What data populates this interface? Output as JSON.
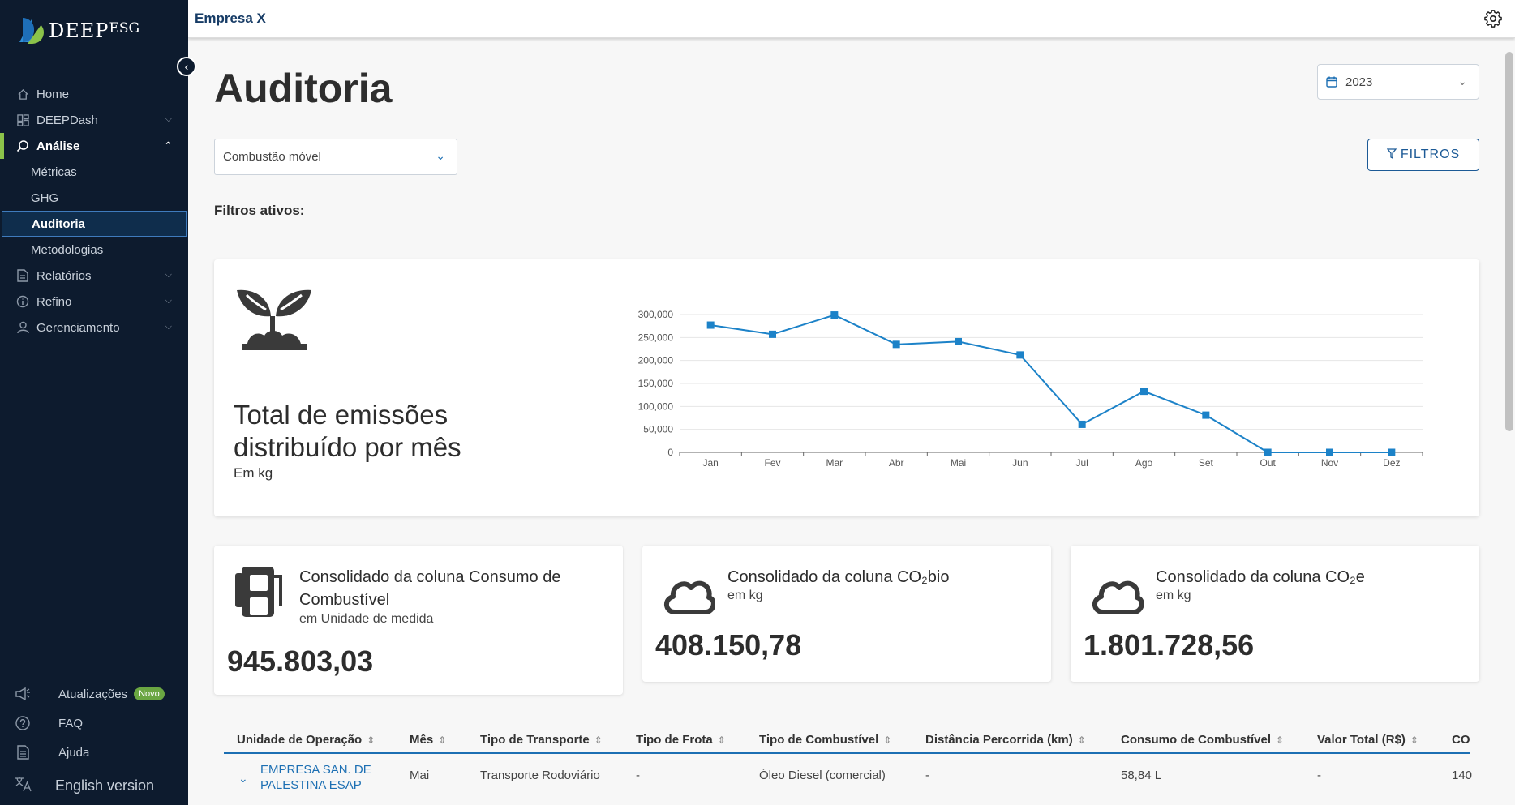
{
  "brand": {
    "name": "DEEP",
    "suffix": "ESG"
  },
  "sidebar": {
    "items": [
      {
        "label": "Home",
        "icon": "home-icon"
      },
      {
        "label": "DEEPDash",
        "icon": "dashboard-icon"
      },
      {
        "label": "Análise",
        "icon": "analysis-icon"
      },
      {
        "label": "Relatórios",
        "icon": "report-icon"
      },
      {
        "label": "Refino",
        "icon": "info-icon"
      },
      {
        "label": "Gerenciamento",
        "icon": "user-icon"
      }
    ],
    "submenu": [
      "Métricas",
      "GHG",
      "Auditoria",
      "Metodologias"
    ],
    "bottom": {
      "updates": "Atualizações",
      "updates_badge": "Novo",
      "faq": "FAQ",
      "help": "Ajuda",
      "language": "English version"
    }
  },
  "topbar": {
    "company": "Empresa X"
  },
  "page": {
    "title": "Auditoria",
    "year": "2023",
    "category": "Combustão móvel",
    "filter_button": "FILTROS",
    "active_filters": "Filtros ativos:"
  },
  "chart_card": {
    "title": "Total de emissões distribuído por mês",
    "subtitle": "Em kg"
  },
  "chart_data": {
    "type": "line",
    "categories": [
      "Jan",
      "Fev",
      "Mar",
      "Abr",
      "Mai",
      "Jun",
      "Jul",
      "Ago",
      "Set",
      "Out",
      "Nov",
      "Dez"
    ],
    "series": [
      {
        "values": [
          277000,
          257000,
          299000,
          235000,
          241000,
          212000,
          61000,
          133000,
          81000,
          0,
          0,
          0
        ]
      }
    ],
    "yticks": [
      "0",
      "50,000",
      "100,000",
      "150,000",
      "200,000",
      "250,000",
      "300,000"
    ],
    "ylim": [
      0,
      300000
    ],
    "grid": true,
    "color": "#1c82c8"
  },
  "kpis": [
    {
      "title": "Consolidado da coluna Consumo de Combustível",
      "unit": "em Unidade de medida",
      "value": "945.803,03",
      "icon": "fuel-pump-icon"
    },
    {
      "title": "Consolidado da coluna CO₂bio",
      "unit": "em kg",
      "value": "408.150,78",
      "icon": "cloud-icon"
    },
    {
      "title": "Consolidado da coluna CO₂e",
      "unit": "em kg",
      "value": "1.801.728,56",
      "icon": "cloud-icon"
    }
  ],
  "table": {
    "columns": [
      "Unidade de Operação",
      "Mês",
      "Tipo de Transporte",
      "Tipo de Frota",
      "Tipo de Combustível",
      "Distância Percorrida (km)",
      "Consumo de Combustível",
      "Valor Total (R$)",
      "CO"
    ],
    "rows": [
      {
        "unit_line1": "EMPRESA SAN. DE",
        "unit_line2": "PALESTINA ESAP",
        "month": "Mai",
        "transport": "Transporte Rodoviário",
        "fleet": "-",
        "fuel": "Óleo Diesel (comercial)",
        "distance": "-",
        "consumption": "58,84 L",
        "total": "-",
        "co": "140"
      }
    ]
  },
  "colors": {
    "sidebar": "#0d1b2e",
    "accent": "#8bc34a",
    "primary": "#1c5a96"
  }
}
